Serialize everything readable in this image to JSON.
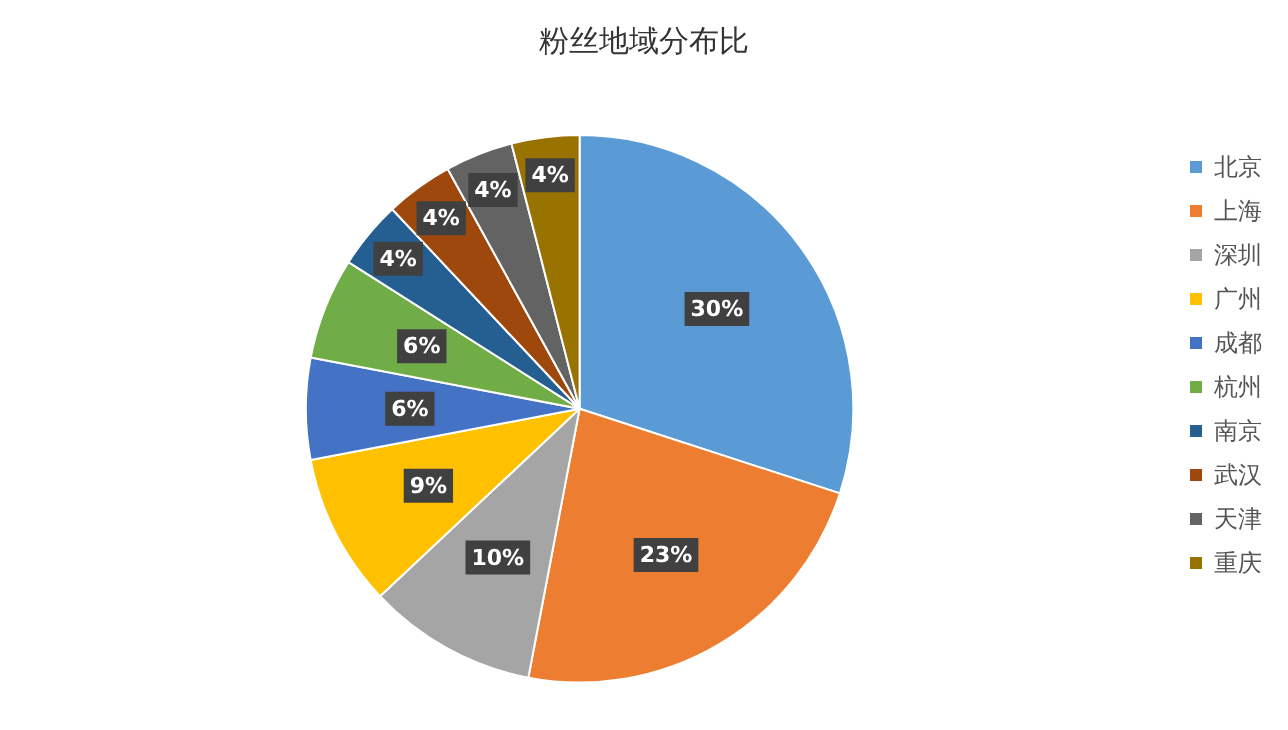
{
  "chart_data": {
    "type": "pie",
    "title": "粉丝地域分布比",
    "categories": [
      "北京",
      "上海",
      "深圳",
      "广州",
      "成都",
      "杭州",
      "南京",
      "武汉",
      "天津",
      "重庆"
    ],
    "values": [
      30,
      23,
      10,
      9,
      6,
      6,
      4,
      4,
      4,
      4
    ],
    "colors": [
      "#5b9bd5",
      "#ed7d31",
      "#a5a5a5",
      "#ffc000",
      "#4472c4",
      "#70ad47",
      "#255e91",
      "#9e480e",
      "#636363",
      "#997300"
    ],
    "value_labels": [
      "30%",
      "23%",
      "10%",
      "9%",
      "6%",
      "6%",
      "4%",
      "4%",
      "4%",
      "4%"
    ],
    "legend": "right"
  }
}
